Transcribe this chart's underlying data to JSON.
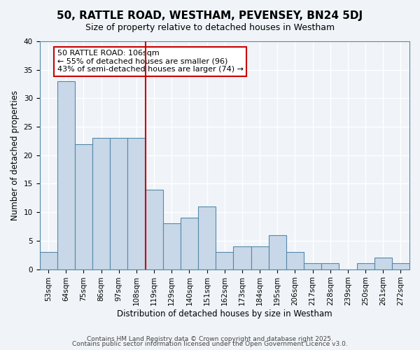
{
  "title": "50, RATTLE ROAD, WESTHAM, PEVENSEY, BN24 5DJ",
  "subtitle": "Size of property relative to detached houses in Westham",
  "xlabel": "Distribution of detached houses by size in Westham",
  "ylabel": "Number of detached properties",
  "bar_color": "#c8d8e8",
  "bar_edge_color": "#5588aa",
  "background_color": "#f0f4f8",
  "grid_color": "#ffffff",
  "categories": [
    "53sqm",
    "64sqm",
    "75sqm",
    "86sqm",
    "97sqm",
    "108sqm",
    "119sqm",
    "129sqm",
    "140sqm",
    "151sqm",
    "162sqm",
    "173sqm",
    "184sqm",
    "195sqm",
    "206sqm",
    "217sqm",
    "228sqm",
    "239sqm",
    "250sqm",
    "261sqm",
    "272sqm"
  ],
  "values": [
    3,
    33,
    22,
    23,
    23,
    23,
    14,
    8,
    9,
    11,
    3,
    4,
    4,
    6,
    3,
    1,
    1,
    0,
    1,
    2,
    1
  ],
  "ylim": [
    0,
    40
  ],
  "yticks": [
    0,
    5,
    10,
    15,
    20,
    25,
    30,
    35,
    40
  ],
  "reference_line_x": 5,
  "reference_label": "50 RATTLE ROAD: 106sqm",
  "annotation_line1": "← 55% of detached houses are smaller (96)",
  "annotation_line2": "43% of semi-detached houses are larger (74) →",
  "annotation_box_color": "#ffffff",
  "annotation_box_edge_color": "#cc0000",
  "ref_line_color": "#cc0000",
  "footer1": "Contains HM Land Registry data © Crown copyright and database right 2025.",
  "footer2": "Contains public sector information licensed under the Open Government Licence v3.0.",
  "title_fontsize": 11,
  "subtitle_fontsize": 9,
  "axis_label_fontsize": 8.5,
  "tick_fontsize": 7.5,
  "annotation_fontsize": 8,
  "footer_fontsize": 6.5
}
